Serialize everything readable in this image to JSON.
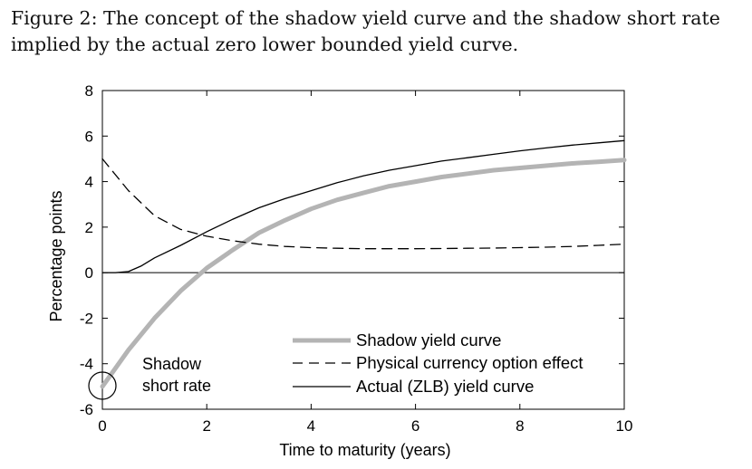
{
  "caption": {
    "line1": "Figure 2: The concept of the shadow yield curve and the shadow short rate",
    "line2": "implied by the actual zero lower bounded yield curve."
  },
  "chart_data": {
    "type": "line",
    "xlabel": "Time to maturity (years)",
    "ylabel": "Percentage points",
    "xlim": [
      0,
      10
    ],
    "ylim": [
      -6,
      8
    ],
    "xticks": [
      0,
      2,
      4,
      6,
      8,
      10
    ],
    "yticks": [
      -6,
      -4,
      -2,
      0,
      2,
      4,
      6,
      8
    ],
    "xtick_labels": [
      "0",
      "2",
      "4",
      "6",
      "8",
      "10"
    ],
    "ytick_labels": [
      "-6",
      "-4",
      "-2",
      "0",
      "2",
      "4",
      "6",
      "8"
    ],
    "grid": false,
    "legend_position": "bottom-right",
    "reference_line_y": 0,
    "series": [
      {
        "name": "Shadow yield curve",
        "color": "#b4b4b4",
        "style": "solid-thick",
        "x": [
          0,
          0.5,
          1,
          1.5,
          2,
          2.5,
          3,
          3.5,
          4,
          4.5,
          5,
          5.5,
          6,
          6.5,
          7,
          7.5,
          8,
          8.5,
          9,
          9.5,
          10
        ],
        "y": [
          -5.0,
          -3.4,
          -2.0,
          -0.8,
          0.2,
          1.0,
          1.75,
          2.3,
          2.8,
          3.2,
          3.5,
          3.8,
          4.0,
          4.2,
          4.35,
          4.5,
          4.6,
          4.7,
          4.8,
          4.87,
          4.95
        ]
      },
      {
        "name": "Physical currency option effect",
        "color": "#000000",
        "style": "dashed",
        "x": [
          0,
          0.5,
          1,
          1.5,
          2,
          2.5,
          3,
          3.5,
          4,
          4.5,
          5,
          5.5,
          6,
          6.5,
          7,
          7.5,
          8,
          8.5,
          9,
          9.5,
          10
        ],
        "y": [
          5.0,
          3.6,
          2.5,
          1.9,
          1.6,
          1.4,
          1.25,
          1.15,
          1.1,
          1.07,
          1.05,
          1.05,
          1.05,
          1.06,
          1.07,
          1.08,
          1.1,
          1.12,
          1.15,
          1.2,
          1.25
        ]
      },
      {
        "name": "Actual (ZLB) yield curve",
        "color": "#000000",
        "style": "solid-thin",
        "x": [
          0,
          0.25,
          0.5,
          0.75,
          1,
          1.5,
          2,
          2.5,
          3,
          3.5,
          4,
          4.5,
          5,
          5.5,
          6,
          6.5,
          7,
          7.5,
          8,
          8.5,
          9,
          9.5,
          10
        ],
        "y": [
          0,
          0,
          0.05,
          0.3,
          0.65,
          1.2,
          1.8,
          2.35,
          2.85,
          3.25,
          3.6,
          3.95,
          4.25,
          4.5,
          4.7,
          4.9,
          5.05,
          5.2,
          5.35,
          5.48,
          5.6,
          5.7,
          5.8
        ]
      }
    ],
    "annotations": [
      {
        "text_line1": "Shadow",
        "text_line2": "short rate",
        "x": 0,
        "y": -5,
        "marker": "circle"
      }
    ]
  }
}
